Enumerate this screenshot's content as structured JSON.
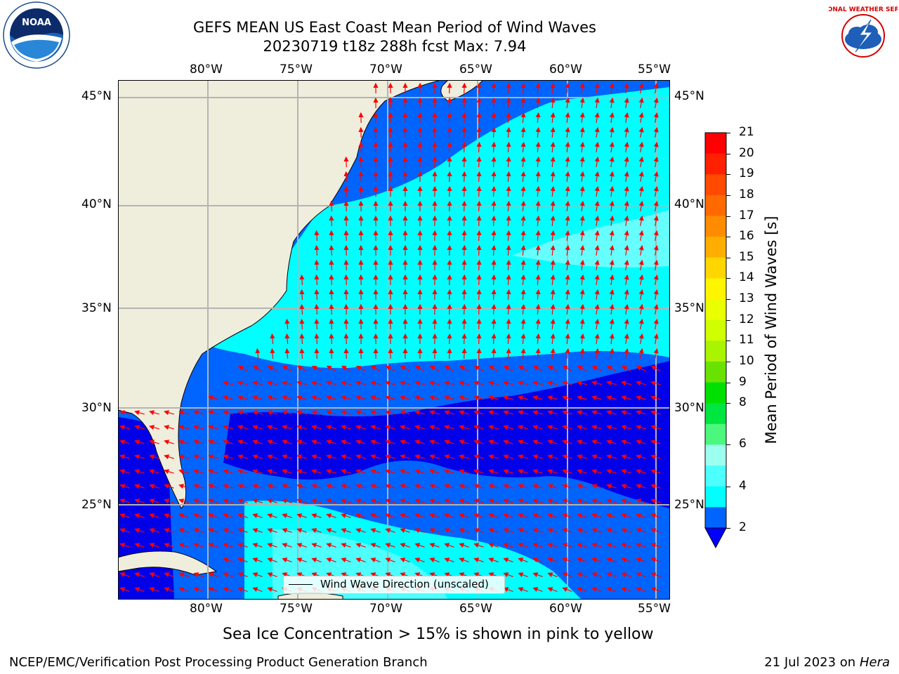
{
  "header": {
    "title": "GEFS MEAN US East Coast Mean Period of Wind Waves",
    "subtitle": "20230719 t18z 288h fcst   Max: 7.94"
  },
  "logos": {
    "left": {
      "name": "noaa-logo",
      "text": "NOAA"
    },
    "right": {
      "name": "nws-logo",
      "text": "NATIONAL WEATHER SERVICE"
    }
  },
  "map": {
    "lon_ticks": [
      "80°W",
      "75°W",
      "70°W",
      "65°W",
      "60°W",
      "55°W"
    ],
    "lat_ticks": [
      "45°N",
      "40°N",
      "35°N",
      "30°N",
      "25°N"
    ],
    "legend_label": "Wind Wave Direction (unscaled)",
    "colors": {
      "land": "#efeddc",
      "level_2_4": "#0064ff",
      "level_4_6": "#00ffff",
      "level_6_8": "#4dffff",
      "below_2": "#0000e8",
      "arrow": "#ff0000",
      "grid": "#b4b4b4"
    }
  },
  "colorbar": {
    "label": "Mean Period of Wind Waves [s]",
    "ticks": [
      "21",
      "20",
      "19",
      "18",
      "17",
      "16",
      "15",
      "14",
      "13",
      "12",
      "11",
      "10",
      "9",
      "8",
      "6",
      "4",
      "2"
    ],
    "bands": [
      "#ff0000",
      "#ff2000",
      "#ff4a00",
      "#ff6a00",
      "#ff8c00",
      "#ffae00",
      "#ffd600",
      "#fff500",
      "#eaff00",
      "#cfff00",
      "#a9f400",
      "#6ae200",
      "#00e000",
      "#00e640",
      "#4bf77d",
      "#9dfff0",
      "#4dffff",
      "#00ffff",
      "#0064ff"
    ],
    "extend_color": "#0000ff"
  },
  "notes": {
    "sea_ice": "Sea Ice Concentration > 15% is shown in pink to yellow"
  },
  "footer": {
    "left": "NCEP/EMC/Verification Post Processing Product Generation Branch",
    "right_date": "21 Jul 2023 on ",
    "right_machine": "Hera"
  }
}
